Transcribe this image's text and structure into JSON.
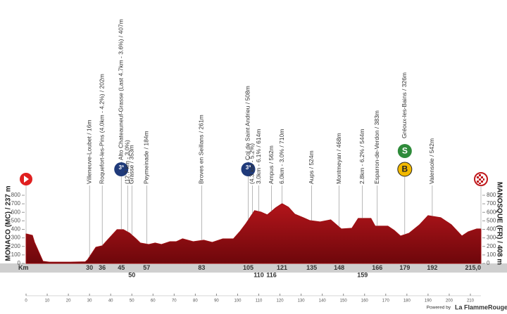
{
  "chart_data": {
    "type": "area",
    "x": [
      0,
      3,
      4,
      8,
      11,
      21,
      28,
      29,
      33,
      36,
      39,
      43,
      46,
      49,
      52,
      54,
      58,
      61,
      64,
      68,
      71,
      74,
      79,
      84,
      88,
      93,
      98,
      101,
      104,
      108,
      111,
      114,
      118,
      121,
      124,
      127,
      131,
      134,
      139,
      144,
      149,
      154,
      157,
      163,
      165,
      171,
      174,
      177,
      181,
      186,
      190,
      196,
      201,
      206,
      209,
      213,
      215
    ],
    "values": [
      347,
      330,
      248,
      25,
      15,
      15,
      20,
      41,
      190,
      207,
      289,
      397,
      397,
      355,
      289,
      240,
      223,
      240,
      223,
      256,
      256,
      289,
      256,
      273,
      248,
      289,
      289,
      372,
      471,
      620,
      603,
      570,
      653,
      702,
      661,
      579,
      537,
      504,
      488,
      512,
      405,
      413,
      529,
      529,
      438,
      438,
      388,
      322,
      355,
      455,
      562,
      537,
      455,
      322,
      372,
      405,
      405
    ],
    "color": "#9e0e12",
    "xlim": [
      0,
      215
    ],
    "ylim": [
      0,
      800
    ],
    "yticks": [
      0,
      100,
      200,
      300,
      400,
      500,
      600,
      700,
      800
    ],
    "xticks": [
      0,
      10,
      20,
      30,
      40,
      50,
      60,
      70,
      80,
      90,
      100,
      110,
      120,
      130,
      140,
      150,
      160,
      170,
      180,
      190,
      200,
      210
    ],
    "start_label": "MONACO (MC) / 237 m",
    "finish_label": "MANOSQUE (FR) / 408 m",
    "km_axis_label": "Km",
    "km_markers": [
      30,
      36,
      45,
      57,
      83,
      105,
      121,
      135,
      148,
      166,
      179,
      192,
      {
        "value": 215,
        "label": "215,0"
      }
    ],
    "km_markers_low": [
      50,
      110,
      116,
      159
    ],
    "waypoints": [
      {
        "label": "Villeneuve-Loubet / 16m",
        "km": 30
      },
      {
        "label": "Roquefort-les-Pins (4.0km - 4.2%) / 202m",
        "km": 36
      },
      {
        "label": "Alto Chateauneuf-Grasse (Last 4.7km - 3.6%) / 407m",
        "km": 45,
        "badge": "3ª"
      },
      {
        "label": "(12.7 km - 3.0%)",
        "km": 48
      },
      {
        "label": "Grasse / 353m",
        "km": 50
      },
      {
        "label": "Peymeinade / 184m",
        "km": 57
      },
      {
        "label": "Broves en Seillans / 261m",
        "km": 83
      },
      {
        "label": "Col de Saint Andrieu / 508m",
        "km": 105,
        "badge": "3ª"
      },
      {
        "label": "(4.3 km - 5.2%)",
        "km": 107
      },
      {
        "label": "3.0km - 6.1% / 614m",
        "km": 110
      },
      {
        "label": "Ampus / 562m",
        "km": 116
      },
      {
        "label": "6.0km - 3.0% / 710m",
        "km": 121
      },
      {
        "label": "Aups / 524m",
        "km": 135
      },
      {
        "label": "Montmeyan / 468m",
        "km": 148
      },
      {
        "label": "2.8km - 6.2% / 544m",
        "km": 159
      },
      {
        "label": "Esparron-de-Verdon / 383m",
        "km": 166
      },
      {
        "label": "Gréoux-les-Bains / 326m",
        "km": 179,
        "badge": "S",
        "badge2": "B"
      },
      {
        "label": "Valensole / 542m",
        "km": 192
      }
    ],
    "footer_prefix": "Powered by",
    "footer_brand": "La FlammeRouge"
  }
}
